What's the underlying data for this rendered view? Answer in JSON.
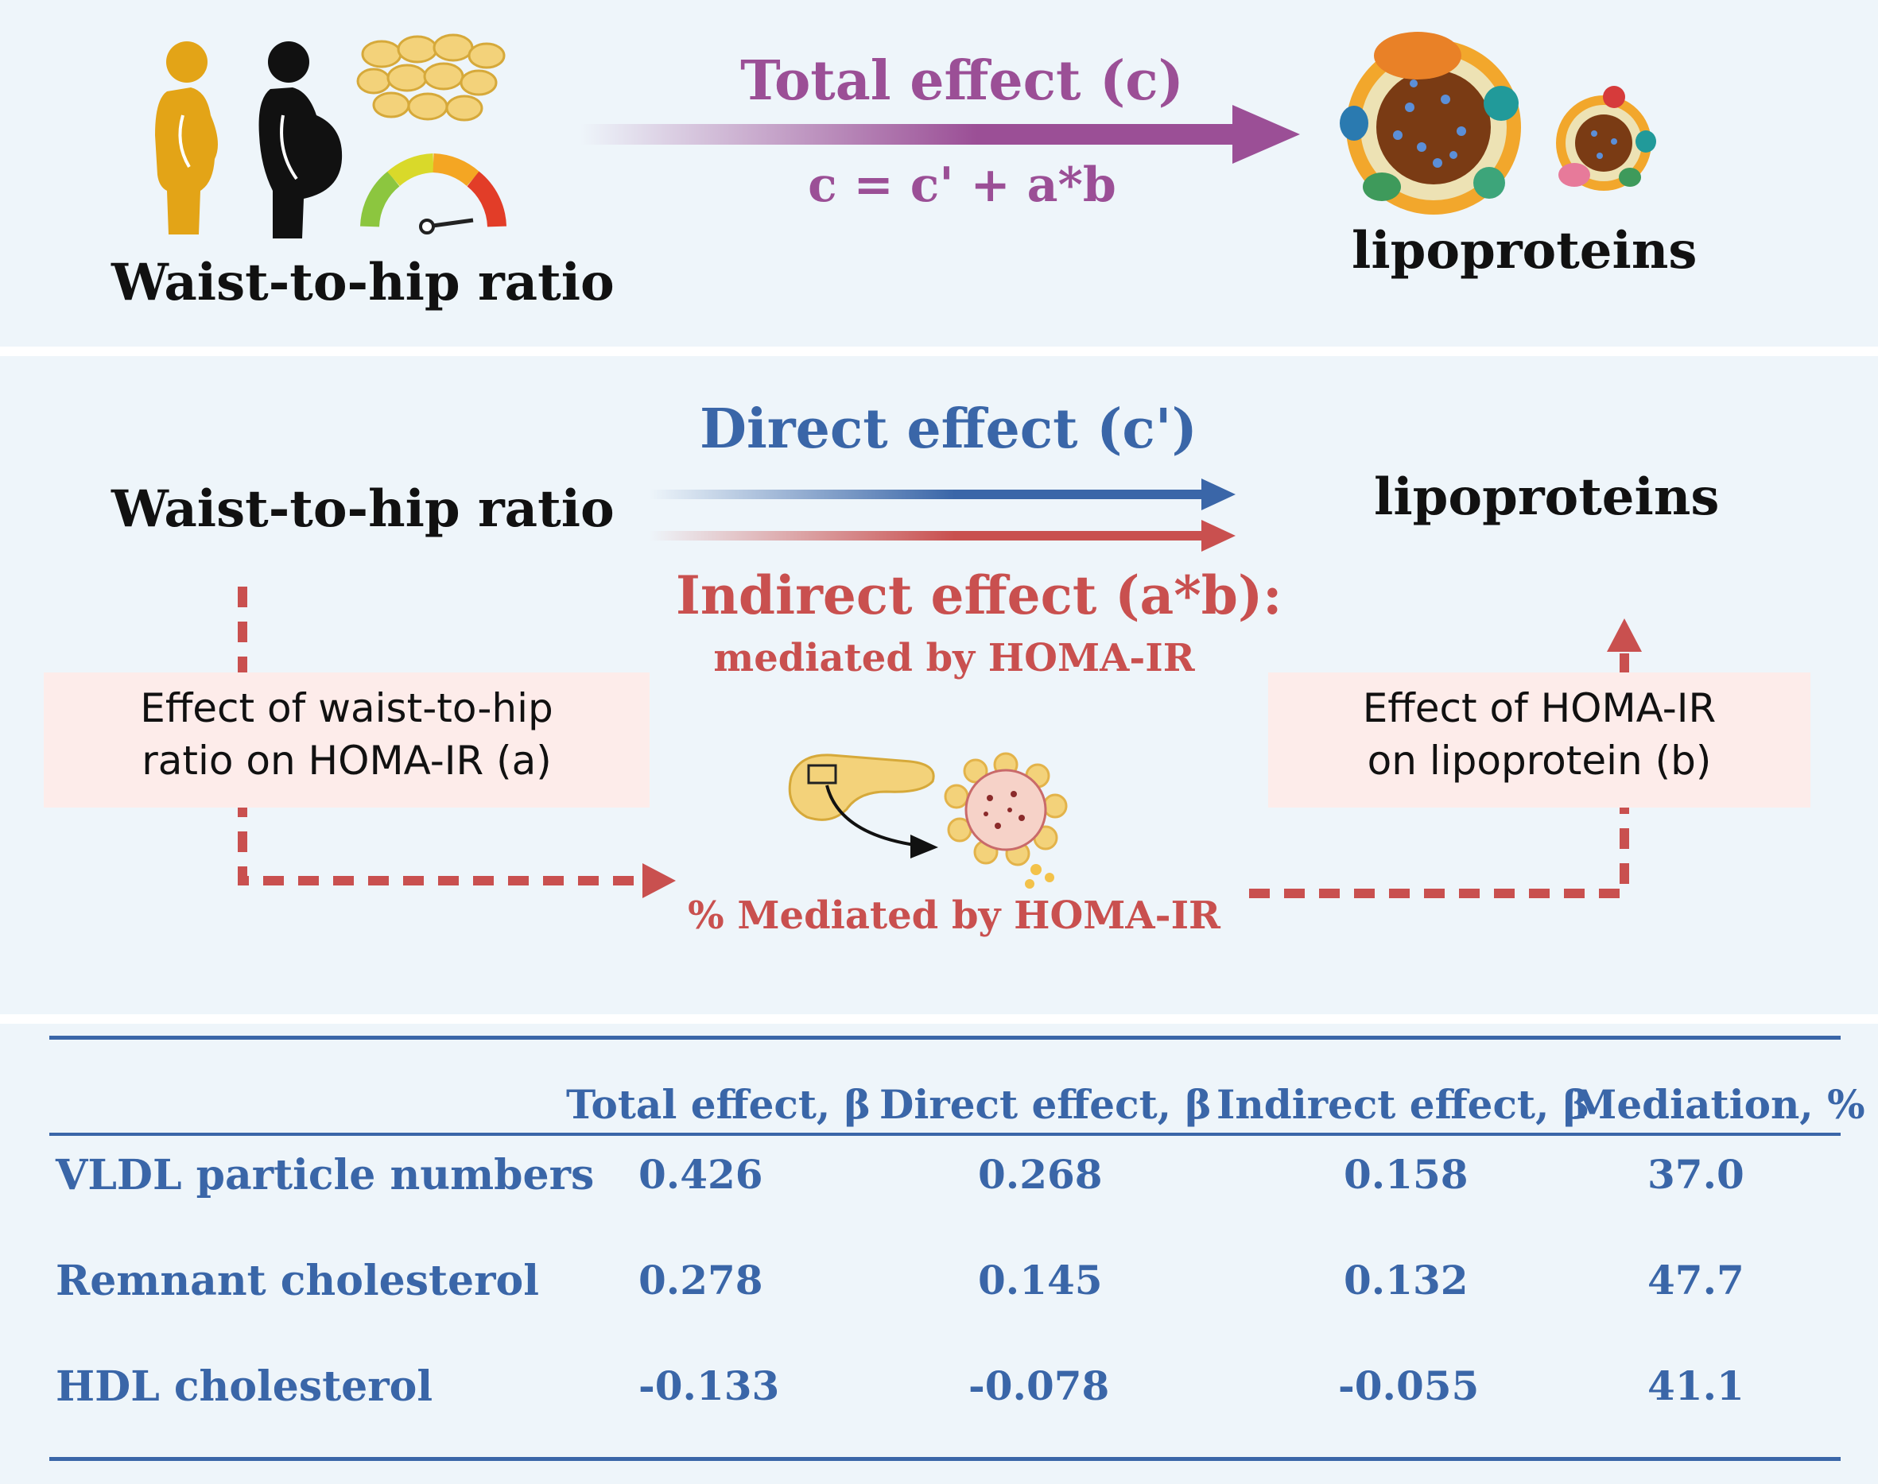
{
  "top": {
    "exposure_label": "Waist-to-hip ratio",
    "outcome_label": "lipoproteins",
    "total_effect_label": "Total effect (c)",
    "equation": "c = c' + a*b"
  },
  "middle": {
    "exposure_label": "Waist-to-hip ratio",
    "outcome_label": "lipoproteins",
    "direct_effect_label": "Direct effect (c')",
    "indirect_effect_label": "Indirect effect (a*b):",
    "indirect_effect_sub": "mediated by HOMA-IR",
    "path_a_line1": "Effect of waist-to-hip",
    "path_a_line2": "ratio on HOMA-IR (a)",
    "path_b_line1": "Effect of HOMA-IR",
    "path_b_line2": "on lipoprotein (b)",
    "mediated_label": "% Mediated by HOMA-IR"
  },
  "table": {
    "headers": [
      "Total effect, β",
      "Direct effect, β",
      "Indirect effect, β",
      "Mediation, %"
    ],
    "rows": [
      {
        "label": "VLDL particle numbers",
        "values": [
          "0.426",
          "0.268",
          "0.158",
          "37.0"
        ]
      },
      {
        "label": "Remnant cholesterol",
        "values": [
          "0.278",
          "0.145",
          "0.132",
          "47.7"
        ]
      },
      {
        "label": "HDL cholesterol",
        "values": [
          "-0.133",
          "-0.078",
          "-0.055",
          "41.1"
        ]
      }
    ]
  },
  "colors": {
    "total": "#9b4f96",
    "direct": "#3a66a8",
    "indirect": "#c9504f",
    "table_text": "#3a66a8"
  },
  "icons": [
    "person-slim-icon",
    "person-obese-icon",
    "fat-cells-icon",
    "gauge-icon",
    "lipoprotein-large-icon",
    "lipoprotein-small-icon",
    "pancreas-icon",
    "islet-cell-icon"
  ]
}
